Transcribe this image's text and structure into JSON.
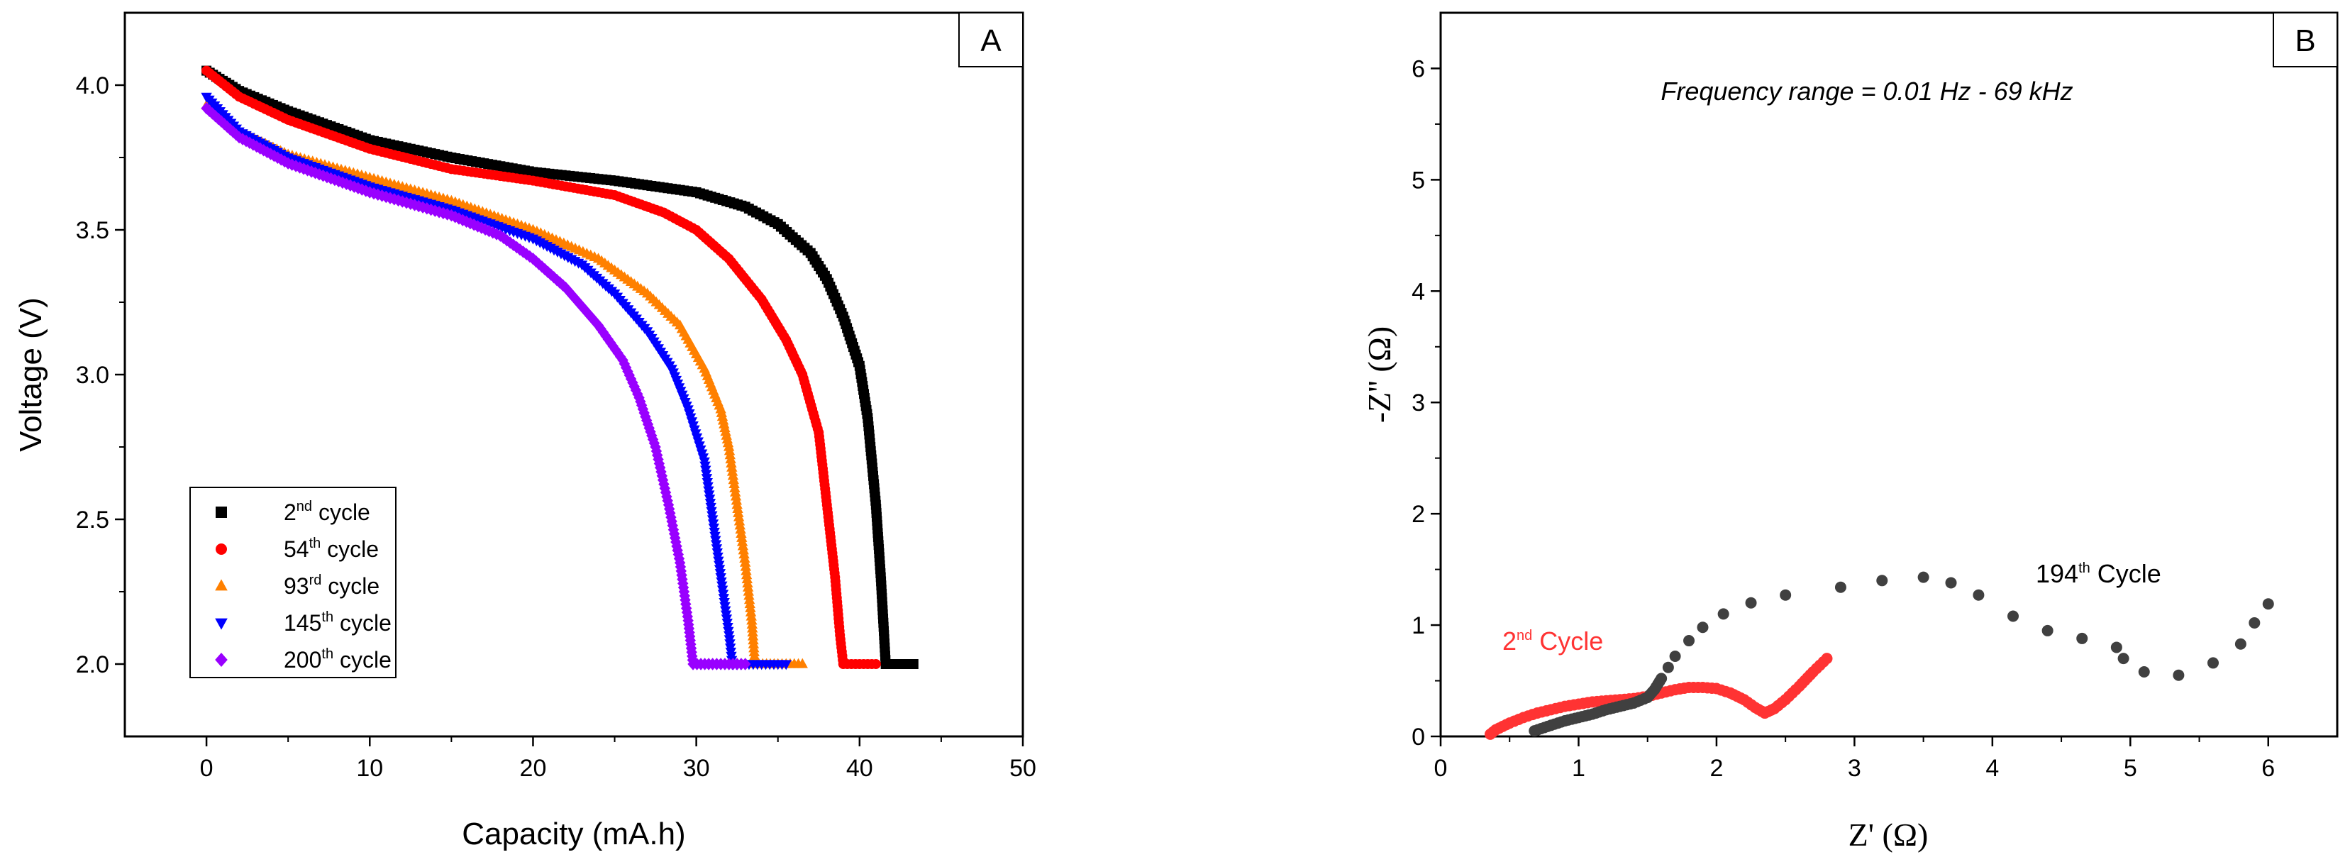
{
  "chart_data": [
    {
      "panel": "A",
      "type": "scatter",
      "xlabel": "Capacity (mA.h)",
      "ylabel": "Voltage (V)",
      "xlim": [
        -5,
        50
      ],
      "ylim": [
        1.75,
        4.25
      ],
      "xticks": [
        0,
        10,
        20,
        30,
        40,
        50
      ],
      "yticks": [
        2.0,
        2.5,
        3.0,
        3.5,
        4.0
      ],
      "ytick_labels": [
        "2.0",
        "2.5",
        "3.0",
        "3.5",
        "4.0"
      ],
      "legend_position": "bottom-left",
      "series": [
        {
          "name": "2nd cycle",
          "base": "2",
          "sup": "nd",
          "rest": " cycle",
          "color": "#000000",
          "marker": "square",
          "points": [
            [
              0,
              4.05
            ],
            [
              2,
              3.98
            ],
            [
              5,
              3.91
            ],
            [
              10,
              3.81
            ],
            [
              15,
              3.75
            ],
            [
              20,
              3.7
            ],
            [
              25,
              3.67
            ],
            [
              30,
              3.63
            ],
            [
              33,
              3.58
            ],
            [
              35,
              3.52
            ],
            [
              37,
              3.42
            ],
            [
              38,
              3.33
            ],
            [
              39,
              3.2
            ],
            [
              40,
              3.03
            ],
            [
              40.5,
              2.85
            ],
            [
              41,
              2.55
            ],
            [
              41.3,
              2.3
            ],
            [
              41.5,
              2.1
            ],
            [
              41.6,
              2.0
            ],
            [
              42.5,
              2.0
            ],
            [
              43.3,
              2.0
            ]
          ]
        },
        {
          "name": "54th cycle",
          "base": "54",
          "sup": "th",
          "rest": " cycle",
          "color": "#ff0000",
          "marker": "circle",
          "points": [
            [
              0,
              4.05
            ],
            [
              2,
              3.96
            ],
            [
              5,
              3.88
            ],
            [
              10,
              3.78
            ],
            [
              15,
              3.71
            ],
            [
              20,
              3.67
            ],
            [
              25,
              3.62
            ],
            [
              28,
              3.56
            ],
            [
              30,
              3.5
            ],
            [
              32,
              3.4
            ],
            [
              34,
              3.26
            ],
            [
              35.5,
              3.12
            ],
            [
              36.5,
              3.0
            ],
            [
              37.5,
              2.8
            ],
            [
              38,
              2.55
            ],
            [
              38.5,
              2.3
            ],
            [
              38.8,
              2.1
            ],
            [
              39,
              2.0
            ],
            [
              40,
              2.0
            ],
            [
              41,
              2.0
            ]
          ]
        },
        {
          "name": "93rd cycle",
          "base": "93",
          "sup": "rd",
          "rest": " cycle",
          "color": "#ff8000",
          "marker": "triangle-up",
          "points": [
            [
              0,
              3.93
            ],
            [
              2,
              3.84
            ],
            [
              5,
              3.76
            ],
            [
              10,
              3.68
            ],
            [
              15,
              3.6
            ],
            [
              20,
              3.5
            ],
            [
              24,
              3.4
            ],
            [
              27,
              3.28
            ],
            [
              29,
              3.17
            ],
            [
              30.5,
              3.02
            ],
            [
              31.5,
              2.88
            ],
            [
              32,
              2.75
            ],
            [
              32.5,
              2.55
            ],
            [
              33,
              2.35
            ],
            [
              33.4,
              2.15
            ],
            [
              33.6,
              2.0
            ],
            [
              35,
              2.0
            ],
            [
              36.5,
              2.0
            ]
          ]
        },
        {
          "name": "145th cycle",
          "base": "145",
          "sup": "th",
          "rest": " cycle",
          "color": "#0000ff",
          "marker": "triangle-down",
          "points": [
            [
              0,
              3.96
            ],
            [
              2,
              3.84
            ],
            [
              5,
              3.75
            ],
            [
              10,
              3.65
            ],
            [
              15,
              3.57
            ],
            [
              20,
              3.47
            ],
            [
              23,
              3.38
            ],
            [
              25,
              3.28
            ],
            [
              27,
              3.15
            ],
            [
              28.5,
              3.02
            ],
            [
              29.5,
              2.88
            ],
            [
              30.5,
              2.7
            ],
            [
              31,
              2.5
            ],
            [
              31.5,
              2.3
            ],
            [
              32,
              2.1
            ],
            [
              32.2,
              2.0
            ],
            [
              34,
              2.0
            ],
            [
              35.5,
              2.0
            ]
          ]
        },
        {
          "name": "200th cycle",
          "base": "200",
          "sup": "th",
          "rest": " cycle",
          "color": "#9900ff",
          "marker": "diamond",
          "points": [
            [
              0,
              3.92
            ],
            [
              2,
              3.82
            ],
            [
              5,
              3.73
            ],
            [
              10,
              3.63
            ],
            [
              15,
              3.55
            ],
            [
              18,
              3.48
            ],
            [
              20,
              3.4
            ],
            [
              22,
              3.3
            ],
            [
              24,
              3.17
            ],
            [
              25.5,
              3.05
            ],
            [
              26.5,
              2.92
            ],
            [
              27.5,
              2.75
            ],
            [
              28.3,
              2.55
            ],
            [
              29,
              2.35
            ],
            [
              29.5,
              2.15
            ],
            [
              29.8,
              2.0
            ],
            [
              31,
              2.0
            ],
            [
              33,
              2.0
            ]
          ]
        }
      ]
    },
    {
      "panel": "B",
      "type": "scatter",
      "xlabel": "Z' (Ω)",
      "ylabel": "-Z'' (Ω)",
      "xlim": [
        0,
        6.5
      ],
      "ylim": [
        0,
        6.5
      ],
      "xticks": [
        0,
        1,
        2,
        3,
        4,
        5,
        6
      ],
      "yticks": [
        0,
        1,
        2,
        3,
        4,
        5,
        6
      ],
      "annotation": "Frequency range = 0.01 Hz - 69 kHz",
      "series": [
        {
          "name": "2nd Cycle",
          "base": "2",
          "sup": "nd",
          "rest": " Cycle",
          "color": "#ff3333",
          "points": [
            [
              0.36,
              0.02
            ],
            [
              0.4,
              0.06
            ],
            [
              0.5,
              0.12
            ],
            [
              0.6,
              0.17
            ],
            [
              0.7,
              0.21
            ],
            [
              0.8,
              0.24
            ],
            [
              0.9,
              0.27
            ],
            [
              1.0,
              0.29
            ],
            [
              1.1,
              0.31
            ],
            [
              1.2,
              0.32
            ],
            [
              1.3,
              0.33
            ],
            [
              1.4,
              0.34
            ],
            [
              1.5,
              0.36
            ],
            [
              1.6,
              0.39
            ],
            [
              1.7,
              0.42
            ],
            [
              1.8,
              0.44
            ],
            [
              1.9,
              0.44
            ],
            [
              2.0,
              0.43
            ],
            [
              2.1,
              0.39
            ],
            [
              2.2,
              0.33
            ],
            [
              2.28,
              0.26
            ],
            [
              2.35,
              0.21
            ],
            [
              2.42,
              0.25
            ],
            [
              2.5,
              0.33
            ],
            [
              2.6,
              0.45
            ],
            [
              2.7,
              0.58
            ],
            [
              2.8,
              0.7
            ]
          ]
        },
        {
          "name": "194th Cycle",
          "base": "194",
          "sup": "th",
          "rest": " Cycle",
          "color": "#404040",
          "points": [
            [
              0.68,
              0.05
            ],
            [
              0.8,
              0.1
            ],
            [
              0.9,
              0.14
            ],
            [
              1.0,
              0.17
            ],
            [
              1.1,
              0.2
            ],
            [
              1.2,
              0.24
            ],
            [
              1.3,
              0.27
            ],
            [
              1.4,
              0.3
            ],
            [
              1.5,
              0.35
            ],
            [
              1.55,
              0.42
            ],
            [
              1.6,
              0.52
            ],
            [
              1.65,
              0.62
            ],
            [
              1.7,
              0.72
            ],
            [
              1.8,
              0.86
            ],
            [
              1.9,
              0.98
            ],
            [
              2.05,
              1.1
            ],
            [
              2.25,
              1.2
            ],
            [
              2.5,
              1.27
            ],
            [
              2.9,
              1.34
            ],
            [
              3.2,
              1.4
            ],
            [
              3.5,
              1.43
            ],
            [
              3.7,
              1.38
            ],
            [
              3.9,
              1.27
            ],
            [
              4.15,
              1.08
            ],
            [
              4.4,
              0.95
            ],
            [
              4.65,
              0.88
            ],
            [
              4.9,
              0.8
            ],
            [
              4.95,
              0.7
            ],
            [
              5.1,
              0.58
            ],
            [
              5.35,
              0.55
            ],
            [
              5.6,
              0.66
            ],
            [
              5.8,
              0.83
            ],
            [
              5.9,
              1.02
            ],
            [
              6.0,
              1.19
            ]
          ]
        }
      ]
    }
  ]
}
